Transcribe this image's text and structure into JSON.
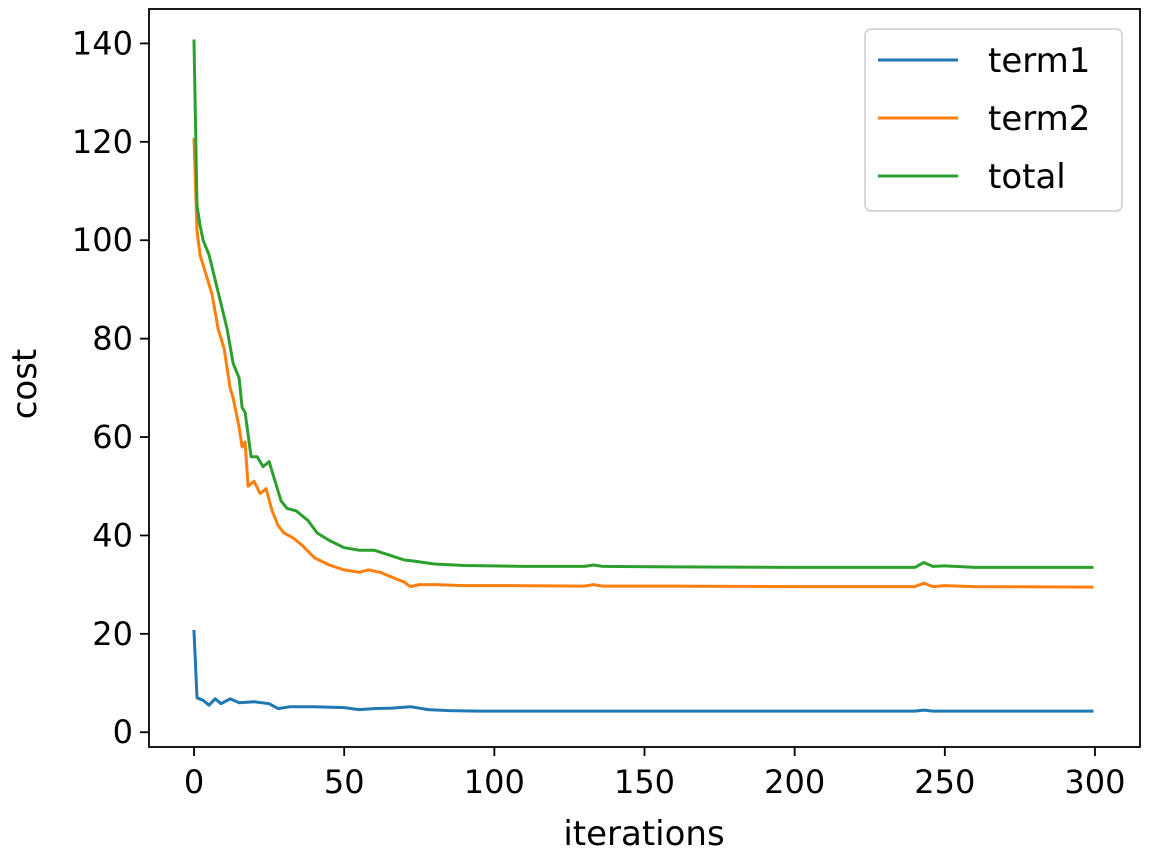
{
  "chart_data": {
    "type": "line",
    "title": "",
    "xlabel": "iterations",
    "ylabel": "cost",
    "xlim": [
      -15,
      315
    ],
    "ylim": [
      -3,
      147
    ],
    "xticks": [
      0,
      50,
      100,
      150,
      200,
      250,
      300
    ],
    "yticks": [
      0,
      20,
      40,
      60,
      80,
      100,
      120,
      140
    ],
    "grid": false,
    "legend": "top-right",
    "series": [
      {
        "name": "term1",
        "color": "#1f77b4",
        "points": [
          [
            0,
            20.5
          ],
          [
            1,
            7
          ],
          [
            3,
            6.5
          ],
          [
            5,
            5.5
          ],
          [
            7,
            6.8
          ],
          [
            9,
            5.8
          ],
          [
            12,
            6.8
          ],
          [
            15,
            6
          ],
          [
            20,
            6.2
          ],
          [
            25,
            5.8
          ],
          [
            28,
            4.8
          ],
          [
            32,
            5.2
          ],
          [
            40,
            5.2
          ],
          [
            50,
            5
          ],
          [
            55,
            4.6
          ],
          [
            60,
            4.8
          ],
          [
            66,
            4.9
          ],
          [
            72,
            5.2
          ],
          [
            78,
            4.6
          ],
          [
            85,
            4.4
          ],
          [
            95,
            4.3
          ],
          [
            120,
            4.3
          ],
          [
            150,
            4.3
          ],
          [
            200,
            4.3
          ],
          [
            240,
            4.3
          ],
          [
            243,
            4.5
          ],
          [
            246,
            4.3
          ],
          [
            260,
            4.3
          ],
          [
            299,
            4.3
          ]
        ]
      },
      {
        "name": "term2",
        "color": "#ff7f0e",
        "points": [
          [
            0,
            120.5
          ],
          [
            1,
            102
          ],
          [
            2,
            97
          ],
          [
            3,
            95
          ],
          [
            4,
            93
          ],
          [
            6,
            89
          ],
          [
            8,
            82
          ],
          [
            10,
            78
          ],
          [
            12,
            70
          ],
          [
            13,
            68
          ],
          [
            15,
            62
          ],
          [
            16,
            58
          ],
          [
            17,
            59
          ],
          [
            18,
            50
          ],
          [
            20,
            51
          ],
          [
            22,
            48.5
          ],
          [
            24,
            49.5
          ],
          [
            26,
            45
          ],
          [
            28,
            42
          ],
          [
            30,
            40.5
          ],
          [
            33,
            39.5
          ],
          [
            36,
            38
          ],
          [
            40,
            35.5
          ],
          [
            45,
            34
          ],
          [
            50,
            33
          ],
          [
            55,
            32.5
          ],
          [
            58,
            33
          ],
          [
            62,
            32.5
          ],
          [
            66,
            31.5
          ],
          [
            70,
            30.5
          ],
          [
            72,
            29.6
          ],
          [
            75,
            30
          ],
          [
            80,
            30
          ],
          [
            90,
            29.8
          ],
          [
            100,
            29.8
          ],
          [
            130,
            29.7
          ],
          [
            133,
            30
          ],
          [
            136,
            29.7
          ],
          [
            160,
            29.7
          ],
          [
            200,
            29.6
          ],
          [
            240,
            29.6
          ],
          [
            243,
            30.3
          ],
          [
            246,
            29.6
          ],
          [
            250,
            29.8
          ],
          [
            260,
            29.6
          ],
          [
            299,
            29.5
          ]
        ]
      },
      {
        "name": "total",
        "color": "#2ca02c",
        "points": [
          [
            0,
            140.5
          ],
          [
            1,
            107
          ],
          [
            2,
            103
          ],
          [
            3,
            100
          ],
          [
            5,
            97
          ],
          [
            7,
            92
          ],
          [
            9,
            87
          ],
          [
            11,
            82
          ],
          [
            13,
            75
          ],
          [
            15,
            72
          ],
          [
            16,
            66
          ],
          [
            17,
            65
          ],
          [
            19,
            56
          ],
          [
            21,
            56
          ],
          [
            23,
            54
          ],
          [
            25,
            55
          ],
          [
            27,
            51
          ],
          [
            29,
            47
          ],
          [
            31,
            45.5
          ],
          [
            34,
            45
          ],
          [
            38,
            43
          ],
          [
            41,
            40.5
          ],
          [
            45,
            39
          ],
          [
            50,
            37.5
          ],
          [
            55,
            37
          ],
          [
            60,
            37
          ],
          [
            65,
            36
          ],
          [
            70,
            35
          ],
          [
            73,
            34.8
          ],
          [
            80,
            34.2
          ],
          [
            90,
            33.9
          ],
          [
            110,
            33.7
          ],
          [
            130,
            33.7
          ],
          [
            133,
            34
          ],
          [
            136,
            33.7
          ],
          [
            160,
            33.6
          ],
          [
            200,
            33.5
          ],
          [
            240,
            33.5
          ],
          [
            243,
            34.5
          ],
          [
            246,
            33.7
          ],
          [
            250,
            33.8
          ],
          [
            260,
            33.5
          ],
          [
            299,
            33.5
          ]
        ]
      }
    ]
  }
}
